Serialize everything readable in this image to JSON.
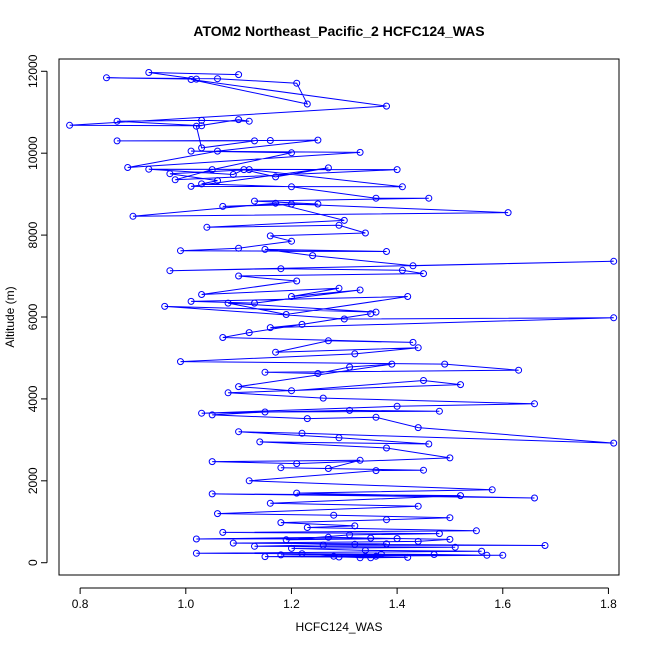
{
  "chart_data": {
    "type": "line",
    "title": "ATOM2 Northeast_Pacific_2 HCFC124_WAS",
    "xlabel": "HCFC124_WAS",
    "ylabel": "Altitude (m)",
    "xlim": [
      0.76,
      1.82
    ],
    "ylim": [
      -300,
      12300
    ],
    "xticks": [
      0.8,
      1.0,
      1.2,
      1.4,
      1.6,
      1.8
    ],
    "xtick_labels": [
      "0.8",
      "1.0",
      "1.2",
      "1.4",
      "1.6",
      "1.8"
    ],
    "yticks": [
      0,
      2000,
      4000,
      6000,
      8000,
      10000,
      12000
    ],
    "ytick_labels": [
      "0",
      "2000",
      "4000",
      "6000",
      "8000",
      "10000",
      "12000"
    ],
    "grid": false,
    "legend": "none",
    "colors": {
      "series": "#0000ff",
      "frame": "#000000"
    },
    "series": [
      {
        "marker": "open-circle",
        "x": [
          1.1,
          0.93,
          1.02,
          0.85,
          1.06,
          1.21,
          1.23,
          1.01,
          1.38,
          0.78,
          1.03,
          0.87,
          1.03,
          1.12,
          1.1,
          1.02,
          1.03,
          1.13,
          0.87,
          1.16,
          1.25,
          1.06,
          0.89,
          1.33,
          1.01,
          1.2,
          1.05,
          0.98,
          1.4,
          0.93,
          1.09,
          1.11,
          1.17,
          1.27,
          1.01,
          1.41,
          1.12,
          0.97,
          1.06,
          1.03,
          1.2,
          1.36,
          1.46,
          1.13,
          1.25,
          1.07,
          1.2,
          1.61,
          0.9,
          1.17,
          1.3,
          1.04,
          1.29,
          1.34,
          1.16,
          1.2,
          1.1,
          0.99,
          1.38,
          1.15,
          1.24,
          1.43,
          1.81,
          0.97,
          1.18,
          1.41,
          1.45,
          1.1,
          1.21,
          1.03,
          1.29,
          1.2,
          1.33,
          1.13,
          1.01,
          1.42,
          1.19,
          1.08,
          1.36,
          0.96,
          1.3,
          1.81,
          1.16,
          1.22,
          1.35,
          1.12,
          1.07,
          1.43,
          1.27,
          1.17,
          1.44,
          1.32,
          0.99,
          1.49,
          1.63,
          1.15,
          1.25,
          1.31,
          1.39,
          1.1,
          1.2,
          1.45,
          1.52,
          1.08,
          1.26,
          1.66,
          1.4,
          1.03,
          1.31,
          1.48,
          1.15,
          1.05,
          1.23,
          1.36,
          1.44,
          1.81,
          1.22,
          1.1,
          1.29,
          1.46,
          1.14,
          1.38,
          1.5,
          1.21,
          1.05,
          1.33,
          1.27,
          1.18,
          1.45,
          1.36,
          1.12,
          1.58,
          1.21,
          1.66,
          1.05,
          1.52,
          1.16,
          1.44,
          1.06,
          1.28,
          1.5,
          1.38,
          1.18,
          1.32,
          1.23,
          1.55,
          1.07,
          1.48,
          1.31,
          1.19,
          1.4,
          1.02,
          1.27,
          1.35,
          1.5,
          1.44,
          1.09,
          1.38,
          1.26,
          1.68,
          1.32,
          1.13,
          1.51,
          1.2,
          1.34,
          1.56,
          1.02,
          1.37,
          1.18,
          1.6,
          1.28,
          1.15,
          1.42,
          1.33,
          1.22,
          1.47,
          1.57,
          1.36,
          1.29,
          1.35
        ],
        "y": [
          11920,
          11970,
          11810,
          11840,
          11820,
          11710,
          11200,
          11800,
          11150,
          10680,
          10670,
          10780,
          10800,
          10780,
          10820,
          10660,
          10130,
          10300,
          10300,
          10310,
          10320,
          10050,
          9650,
          10020,
          10050,
          10010,
          9600,
          9350,
          9600,
          9610,
          9480,
          9600,
          9420,
          9640,
          9190,
          9180,
          9600,
          9500,
          9330,
          9250,
          9180,
          8900,
          8900,
          8830,
          8760,
          8700,
          8760,
          8550,
          8460,
          8780,
          8360,
          8190,
          8240,
          8050,
          7980,
          7850,
          7680,
          7620,
          7600,
          7650,
          7500,
          7250,
          7360,
          7130,
          7180,
          7140,
          7060,
          7000,
          6880,
          6550,
          6700,
          6500,
          6660,
          6340,
          6380,
          6500,
          6060,
          6340,
          6120,
          6260,
          5950,
          5980,
          5740,
          5820,
          6080,
          5620,
          5500,
          5380,
          5420,
          5140,
          5250,
          5100,
          4910,
          4850,
          4700,
          4650,
          4620,
          4780,
          4850,
          4300,
          4200,
          4450,
          4350,
          4150,
          4020,
          3880,
          3820,
          3650,
          3720,
          3700,
          3680,
          3610,
          3520,
          3550,
          3300,
          2920,
          3160,
          3200,
          3050,
          2900,
          2950,
          2800,
          2560,
          2420,
          2470,
          2500,
          2300,
          2320,
          2260,
          2250,
          2000,
          1780,
          1700,
          1580,
          1680,
          1640,
          1450,
          1380,
          1200,
          1160,
          1100,
          1050,
          980,
          900,
          860,
          780,
          740,
          710,
          680,
          560,
          590,
          580,
          620,
          600,
          570,
          520,
          480,
          460,
          430,
          420,
          450,
          400,
          380,
          350,
          300,
          280,
          230,
          210,
          190,
          180,
          160,
          150,
          130,
          120,
          220,
          200,
          180,
          160,
          140,
          120
        ]
      }
    ]
  }
}
